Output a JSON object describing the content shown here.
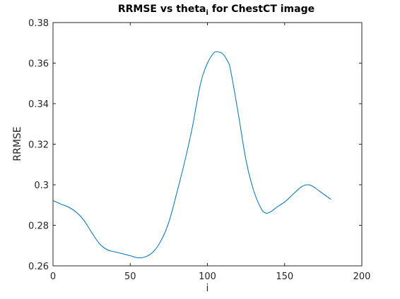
{
  "chart_data": {
    "type": "line",
    "title": "RRMSE vs theta",
    "title_subscript": "i",
    "title_suffix": "for ChestCT image",
    "xlabel": "i",
    "ylabel": "RRMSE",
    "xlim": [
      0,
      200
    ],
    "ylim": [
      0.26,
      0.38
    ],
    "xticks": [
      0,
      50,
      100,
      150,
      200
    ],
    "xtick_labels": [
      "0",
      "50",
      "100",
      "150",
      "200"
    ],
    "yticks": [
      0.26,
      0.28,
      0.3,
      0.32,
      0.34,
      0.36,
      0.38
    ],
    "ytick_labels": [
      "0.26",
      "0.28",
      "0.3",
      "0.32",
      "0.34",
      "0.36",
      "0.38"
    ],
    "grid": false,
    "line_color": "#0072bd",
    "series": [
      {
        "x": [
          0,
          5,
          10,
          15,
          20,
          25,
          30,
          35,
          40,
          45,
          50,
          55,
          60,
          65,
          70,
          75,
          80,
          85,
          90,
          93,
          95,
          97,
          100,
          103,
          105,
          107,
          110,
          113,
          115,
          120,
          125,
          130,
          135,
          138,
          140,
          142,
          145,
          150,
          155,
          160,
          163,
          165,
          167,
          170,
          175,
          180
        ],
        "y": [
          0.2922,
          0.2905,
          0.289,
          0.2865,
          0.2825,
          0.2765,
          0.271,
          0.268,
          0.2669,
          0.266,
          0.265,
          0.264,
          0.2645,
          0.267,
          0.2725,
          0.2815,
          0.2955,
          0.3105,
          0.3275,
          0.34,
          0.348,
          0.354,
          0.36,
          0.364,
          0.3655,
          0.3655,
          0.3645,
          0.361,
          0.3565,
          0.335,
          0.312,
          0.297,
          0.288,
          0.286,
          0.2863,
          0.2872,
          0.289,
          0.2915,
          0.295,
          0.2985,
          0.2998,
          0.3,
          0.2997,
          0.2983,
          0.2955,
          0.2928
        ]
      }
    ]
  }
}
